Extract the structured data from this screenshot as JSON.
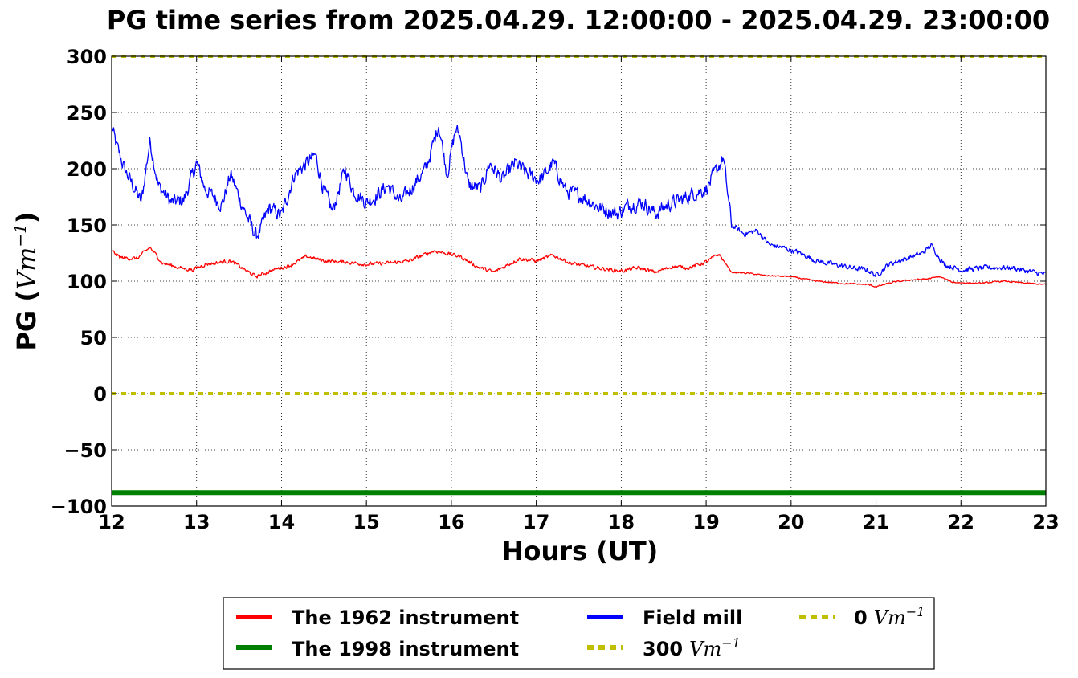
{
  "chart_data": {
    "type": "line",
    "title": "PG time series from 2025.04.29. 12:00:00 - 2025.04.29. 23:00:00",
    "xlabel": "Hours (UT)",
    "ylabel": {
      "prefix": "PG (",
      "unit": "Vm",
      "exponent": "−1",
      "suffix": ")"
    },
    "xlim": [
      12,
      23
    ],
    "ylim": [
      -100,
      300
    ],
    "x_ticks": [
      12,
      13,
      14,
      15,
      16,
      17,
      18,
      19,
      20,
      21,
      22,
      23
    ],
    "x_tick_labels": [
      "12",
      "13",
      "14",
      "15",
      "16",
      "17",
      "18",
      "19",
      "20",
      "21",
      "22",
      "23"
    ],
    "y_ticks": [
      -100,
      -50,
      0,
      50,
      100,
      150,
      200,
      250,
      300
    ],
    "y_tick_labels": [
      "−100",
      "−50",
      "0",
      "50",
      "100",
      "150",
      "200",
      "250",
      "300"
    ],
    "grid": true,
    "legend_position": "bottom-center, below axes",
    "series": [
      {
        "name": "The 1962 instrument",
        "color": "#ff0000",
        "noise": 0.35,
        "x": [
          12.0,
          12.1,
          12.3,
          12.45,
          12.6,
          12.8,
          12.95,
          13.1,
          13.4,
          13.7,
          13.9,
          14.1,
          14.3,
          14.5,
          14.75,
          15.0,
          15.25,
          15.5,
          15.8,
          16.1,
          16.3,
          16.5,
          16.8,
          17.0,
          17.2,
          17.4,
          17.7,
          18.0,
          18.2,
          18.4,
          18.6,
          18.8,
          19.0,
          19.15,
          19.3,
          19.5,
          19.7,
          20.0,
          20.3,
          20.6,
          20.9,
          21.0,
          21.2,
          21.4,
          21.6,
          21.75,
          21.9,
          22.2,
          22.5,
          22.8,
          23.0
        ],
        "y": [
          127,
          121,
          120,
          130,
          116,
          112,
          110,
          115,
          118,
          104,
          110,
          114,
          122,
          118,
          117,
          115,
          116,
          118,
          127,
          122,
          113,
          108,
          120,
          118,
          123,
          116,
          112,
          109,
          112,
          108,
          113,
          112,
          117,
          124,
          108,
          107,
          105,
          104,
          100,
          98,
          97,
          95,
          99,
          101,
          102,
          104,
          99,
          98,
          100,
          98,
          97
        ]
      },
      {
        "name": "The 1998 instrument",
        "color": "#008000",
        "noise": 0,
        "x": [
          12,
          23
        ],
        "y": [
          -88,
          -88
        ]
      },
      {
        "name": "Field mill",
        "color": "#0000ff",
        "noise": 0.8,
        "x": [
          12.0,
          12.05,
          12.15,
          12.25,
          12.35,
          12.45,
          12.55,
          12.7,
          12.85,
          13.0,
          13.1,
          13.3,
          13.4,
          13.55,
          13.7,
          13.75,
          13.85,
          14.0,
          14.15,
          14.3,
          14.4,
          14.5,
          14.6,
          14.75,
          14.85,
          15.0,
          15.1,
          15.25,
          15.4,
          15.55,
          15.7,
          15.8,
          15.85,
          15.95,
          16.05,
          16.1,
          16.2,
          16.35,
          16.45,
          16.6,
          16.75,
          16.9,
          17.05,
          17.2,
          17.35,
          17.55,
          17.75,
          17.95,
          18.1,
          18.25,
          18.4,
          18.55,
          18.7,
          18.85,
          19.0,
          19.1,
          19.2,
          19.3,
          19.45,
          19.6,
          19.75,
          19.9,
          20.1,
          20.3,
          20.5,
          20.7,
          20.9,
          21.0,
          21.15,
          21.35,
          21.55,
          21.65,
          21.8,
          22.0,
          22.3,
          22.6,
          22.85,
          23.0
        ],
        "y": [
          238,
          222,
          200,
          185,
          170,
          225,
          185,
          170,
          172,
          205,
          182,
          168,
          195,
          165,
          140,
          145,
          165,
          158,
          195,
          205,
          212,
          180,
          162,
          200,
          180,
          170,
          175,
          185,
          170,
          185,
          200,
          225,
          240,
          195,
          235,
          230,
          185,
          182,
          205,
          190,
          205,
          195,
          190,
          205,
          180,
          175,
          165,
          160,
          168,
          170,
          160,
          168,
          172,
          178,
          182,
          195,
          210,
          150,
          142,
          145,
          132,
          130,
          125,
          118,
          115,
          112,
          110,
          105,
          115,
          120,
          125,
          132,
          115,
          110,
          112,
          112,
          108,
          106
        ]
      },
      {
        "name": "300",
        "name_unit": "Vm",
        "name_exponent": "−1",
        "color": "#bfbf00",
        "dashed": true,
        "noise": 0,
        "x": [
          12,
          23
        ],
        "y": [
          300,
          300
        ]
      },
      {
        "name": "0",
        "name_unit": "Vm",
        "name_exponent": "−1",
        "color": "#bfbf00",
        "dashed": true,
        "noise": 0,
        "x": [
          12,
          23
        ],
        "y": [
          0,
          0
        ]
      }
    ]
  }
}
